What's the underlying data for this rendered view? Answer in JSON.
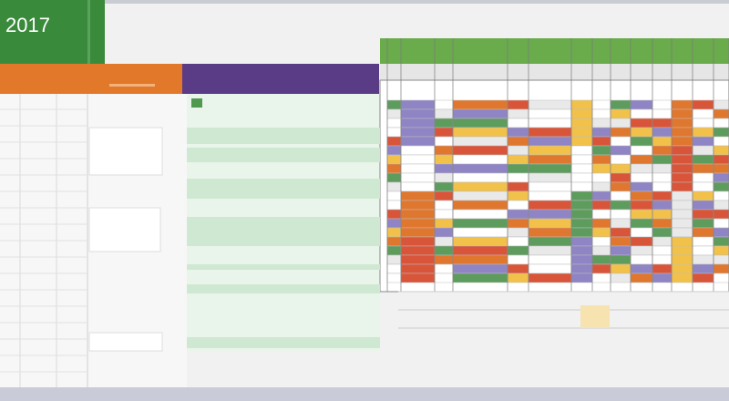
{
  "header": {
    "title": "2017"
  }
}
